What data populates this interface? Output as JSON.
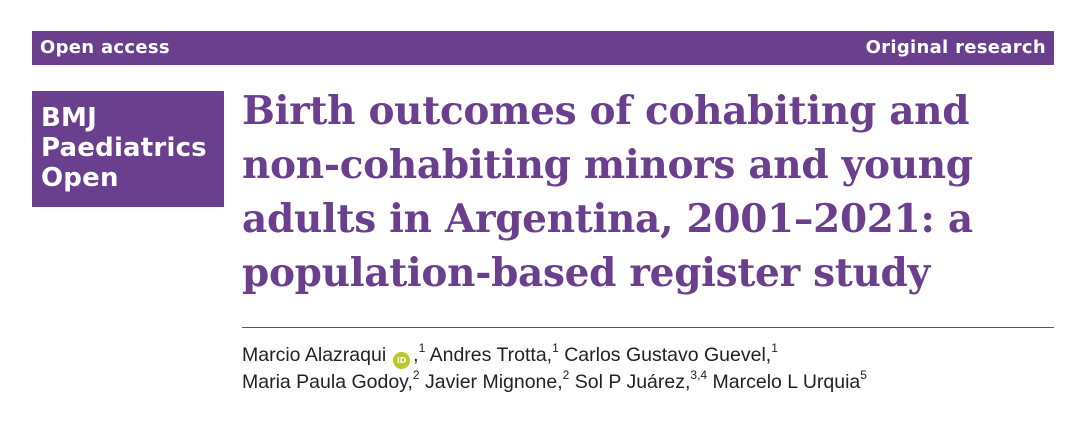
{
  "header": {
    "left_label": "Open access",
    "right_label": "Original research"
  },
  "journal": {
    "name_lines": [
      "BMJ",
      "Paediatrics",
      "Open"
    ]
  },
  "article": {
    "title": "Birth outcomes of cohabiting and non-cohabiting minors and young adults in Argentina, 2001–2021: a population-based register study"
  },
  "authors": [
    {
      "name": "Marcio Alazraqui",
      "orcid_icon": "orcid-icon",
      "orcid_text": "iD",
      "affil": "1"
    },
    {
      "name": "Andres Trotta",
      "affil": "1"
    },
    {
      "name": "Carlos Gustavo Guevel",
      "affil": "1"
    },
    {
      "name": "Maria Paula Godoy",
      "affil": "2"
    },
    {
      "name": "Javier Mignone",
      "affil": "2"
    },
    {
      "name": "Sol P Juárez",
      "affil": "3,4"
    },
    {
      "name": "Marcelo L Urquia",
      "affil": "5"
    }
  ],
  "colors": {
    "brand_purple": "#6a3f8e",
    "orcid_green": "#b8c928"
  }
}
